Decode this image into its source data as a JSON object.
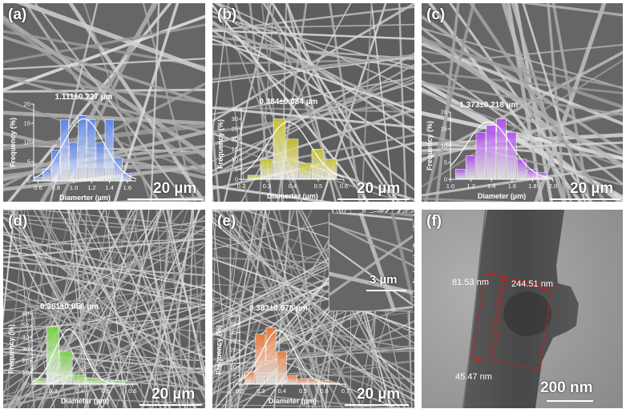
{
  "panels": [
    {
      "label": "(a)",
      "scale_label": "20 µm",
      "annotation": "1.111±0.227 µm",
      "ylabel": "Frequency (%)",
      "xlabel": "Diamerter (µm)",
      "bar_color": "#5b86f0",
      "fit_color": "#ffffff"
    },
    {
      "label": "(b)",
      "scale_label": "20 µm",
      "annotation": "0.384±0.084 µm",
      "ylabel": "Frequency (%)",
      "xlabel": "Diamerter (µm)",
      "bar_color": "#c9c22a",
      "fit_color": "#ffffff"
    },
    {
      "label": "(c)",
      "scale_label": "20 µm",
      "annotation": "1.373±0.218 µm",
      "ylabel": "Frequency (%)",
      "xlabel": "Diameter (µm)",
      "bar_color": "#b14cf0",
      "fit_color": "#ffffff"
    },
    {
      "label": "(d)",
      "scale_label": "20 µm",
      "annotation": "0.361±0.056 µm",
      "ylabel": "Frequency (%)",
      "xlabel": "Diameter (µm)",
      "bar_color": "#7bd34a",
      "fit_color": "#ffffff"
    },
    {
      "label": "(e)",
      "scale_label": "20 µm",
      "inset_scale_label": "3 µm",
      "annotation": "0.383±0.078 µm",
      "ylabel": "Frequency (%)",
      "xlabel": "Diameter (µm)",
      "bar_color": "#ef7a3a",
      "fit_color": "#ffffff"
    },
    {
      "label": "(f)",
      "scale_label": "200 nm",
      "measurements": [
        "81.53 nm",
        "244.51 nm",
        "45.47 nm"
      ]
    }
  ],
  "chart_data": [
    {
      "type": "bar",
      "panel": "(a)",
      "categories": [
        "0.6",
        "0.7",
        "0.8",
        "0.9",
        "1.0",
        "1.1",
        "1.2",
        "1.3",
        "1.4",
        "1.5",
        "1.6"
      ],
      "values": [
        1,
        3,
        8,
        16,
        10,
        17,
        16,
        10,
        16,
        6,
        2
      ],
      "x_ticks": [
        "0.6",
        "0.8",
        "1.0",
        "1.2",
        "1.4",
        "1.6"
      ],
      "y_ticks": [
        "0",
        "5",
        "10",
        "15",
        "20"
      ],
      "ylim": [
        0,
        20
      ],
      "xlim": [
        0.55,
        1.7
      ],
      "fit": {
        "mean": 1.111,
        "sd": 0.227
      }
    },
    {
      "type": "bar",
      "panel": "(b)",
      "categories": [
        "0.25",
        "0.30",
        "0.35",
        "0.40",
        "0.45",
        "0.50",
        "0.55"
      ],
      "values": [
        2,
        10,
        30,
        20,
        8,
        15,
        10
      ],
      "x_ticks": [
        "0.2",
        "0.3",
        "0.4",
        "0.5",
        "0.6"
      ],
      "y_ticks": [
        "0",
        "5",
        "10",
        "15",
        "20",
        "25",
        "30",
        "35"
      ],
      "ylim": [
        0,
        35
      ],
      "xlim": [
        0.2,
        0.6
      ],
      "fit": {
        "mean": 0.384,
        "sd": 0.084
      }
    },
    {
      "type": "bar",
      "panel": "(c)",
      "categories": [
        "1.1",
        "1.2",
        "1.3",
        "1.4",
        "1.5",
        "1.6",
        "1.7",
        "1.8",
        "1.9"
      ],
      "values": [
        3,
        7,
        14,
        16,
        18,
        14,
        6,
        3,
        2
      ],
      "x_ticks": [
        "1.0",
        "1.2",
        "1.4",
        "1.6",
        "1.8",
        "2.0"
      ],
      "y_ticks": [
        "0",
        "5",
        "10",
        "15",
        "20"
      ],
      "ylim": [
        0,
        20
      ],
      "xlim": [
        1.0,
        2.0
      ],
      "fit": {
        "mean": 1.373,
        "sd": 0.218
      }
    },
    {
      "type": "bar",
      "panel": "(d)",
      "categories": [
        "0.25",
        "0.30",
        "0.35",
        "0.40",
        "0.45",
        "0.50",
        "0.55"
      ],
      "values": [
        5,
        49,
        28,
        8,
        5,
        3,
        3
      ],
      "x_ticks": [
        "0.3",
        "0.4",
        "0.5",
        "0.6"
      ],
      "y_ticks": [
        "0",
        "10",
        "20",
        "30",
        "40",
        "50",
        "60"
      ],
      "ylim": [
        0,
        60
      ],
      "xlim": [
        0.22,
        0.62
      ],
      "fit": {
        "mean": 0.361,
        "sd": 0.056
      }
    },
    {
      "type": "bar",
      "panel": "(e)",
      "categories": [
        "0.25",
        "0.30",
        "0.35",
        "0.40",
        "0.45",
        "0.50",
        "0.55",
        "0.60",
        "0.65"
      ],
      "values": [
        7,
        29,
        33,
        19,
        5,
        3,
        3,
        2,
        1
      ],
      "x_ticks": [
        "0.2",
        "0.3",
        "0.4",
        "0.5",
        "0.6",
        "0.7"
      ],
      "y_ticks": [
        "0",
        "5",
        "10",
        "15",
        "20",
        "25",
        "30",
        "35",
        "40"
      ],
      "ylim": [
        0,
        40
      ],
      "xlim": [
        0.2,
        0.7
      ],
      "fit": {
        "mean": 0.383,
        "sd": 0.078
      }
    }
  ]
}
